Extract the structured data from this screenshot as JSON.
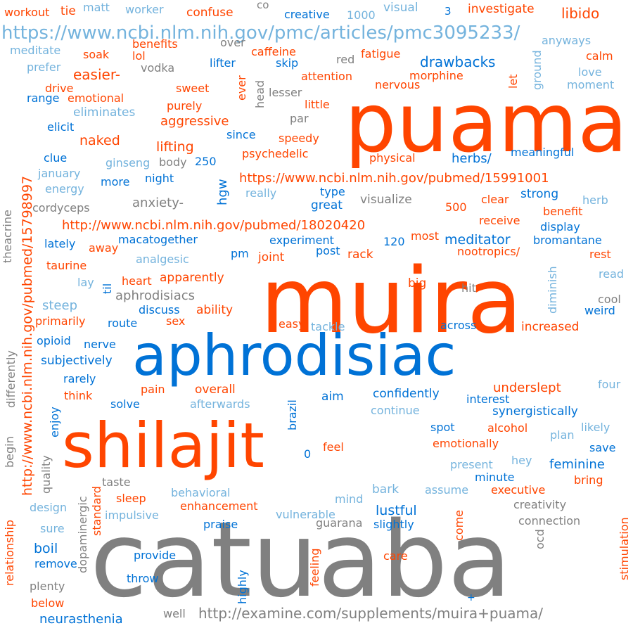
{
  "colors": {
    "orange": "#ff4500",
    "blue": "#0072d6",
    "light_blue": "#74b3dd",
    "gray": "#808080"
  },
  "words": {
    "workout": "workout",
    "tie": "tie",
    "matt": "matt",
    "worker": "worker",
    "confuse": "confuse",
    "co": "co",
    "creative": "creative",
    "n1000": "1000",
    "visual": "visual",
    "n3": "3",
    "investigate": "investigate",
    "libido": "libido",
    "url_pmc": "https://www.ncbi.nlm.nih.gov/pmc/articles/pmc3095233/",
    "meditate": "meditate",
    "benefits": "benefits",
    "over": "over",
    "caffeine": "caffeine",
    "anyways": "anyways",
    "soak": "soak",
    "lol": "lol",
    "red": "red",
    "fatigue": "fatigue",
    "calm": "calm",
    "prefer": "prefer",
    "vodka": "vodka",
    "lifter": "lifter",
    "skip": "skip",
    "drawbacks": "drawbacks",
    "love": "love",
    "easier": "easier-",
    "attention": "attention",
    "morphine": "morphine",
    "moment": "moment",
    "drive": "drive",
    "sweet": "sweet",
    "ever": "ever",
    "lesser": "lesser",
    "nervous": "nervous",
    "head": "head",
    "let": "let",
    "ground": "ground",
    "puama": "puama",
    "range": "range",
    "emotional": "emotional",
    "purely": "purely",
    "little": "little",
    "eliminates": "eliminates",
    "par": "par",
    "aggressive": "aggressive",
    "elicit": "elicit",
    "since": "since",
    "speedy": "speedy",
    "naked": "naked",
    "lifting": "lifting",
    "meaningful": "meaningful",
    "clue": "clue",
    "psychedelic": "psychedelic",
    "physical": "physical",
    "herbs": "herbs/",
    "ginseng": "ginseng",
    "body": "body",
    "n250": "250",
    "january": "january",
    "night": "night",
    "url_pubmed1": "https://www.ncbi.nlm.nih.gov/pubmed/15991001",
    "more": "more",
    "energy": "energy",
    "hgw": "hgw",
    "really": "really",
    "type": "type",
    "strong": "strong",
    "theacrine": "theacrine",
    "cordyceps": "cordyceps",
    "anxiety": "anxiety-",
    "visualize": "visualize",
    "clear": "clear",
    "herb": "herb",
    "great": "great",
    "n500": "500",
    "receive": "receive",
    "benefit": "benefit",
    "url_pubmed2": "http://www.ncbi.nlm.nih.gov/pubmed/18020420",
    "display": "display",
    "macatogether": "macatogether",
    "meditator": "meditator",
    "lately": "lately",
    "experiment": "experiment",
    "most": "most",
    "bromantane": "bromantane",
    "away": "away",
    "n120": "120",
    "post": "post",
    "rack": "rack",
    "nootropics": "nootropics/",
    "rest": "rest",
    "pm": "pm",
    "joint": "joint",
    "analgesic": "analgesic",
    "taurine": "taurine",
    "muira": "muira",
    "read": "read",
    "apparently": "apparently",
    "heart": "heart",
    "lay": "lay",
    "til": "til",
    "diminish": "diminish",
    "big": "big",
    "hit": "hit",
    "aphrodisiacs": "aphrodisiacs",
    "cool": "cool",
    "url_pubmed3": "http://www.ncbi.nlm.nih.gov/pubmed/15798997",
    "steep": "steep",
    "discuss": "discuss",
    "ability": "ability",
    "weird": "weird",
    "primarily": "primarily",
    "route": "route",
    "sex": "sex",
    "easy": "easy",
    "tackle": "tackle",
    "across": "across",
    "increased": "increased",
    "differently": "differently",
    "opioid": "opioid",
    "nerve": "nerve",
    "aphrodisiac": "aphrodisiac",
    "subjectively": "subjectively",
    "rarely": "rarely",
    "underslept": "underslept",
    "four": "four",
    "pain": "pain",
    "overall": "overall",
    "aim": "aim",
    "confidently": "confidently",
    "think": "think",
    "interest": "interest",
    "solve": "solve",
    "afterwards": "afterwards",
    "continue": "continue",
    "synergistically": "synergistically",
    "enjoy": "enjoy",
    "brazil": "brazil",
    "spot": "spot",
    "alcohol": "alcohol",
    "likely": "likely",
    "shilajit": "shilajit",
    "plan": "plan",
    "begin": "begin",
    "feel": "feel",
    "emotionally": "emotionally",
    "save": "save",
    "quality": "quality",
    "n0": "0",
    "present": "present",
    "hey": "hey",
    "feminine": "feminine",
    "minute": "minute",
    "taste": "taste",
    "bring": "bring",
    "bark": "bark",
    "assume": "assume",
    "executive": "executive",
    "behavioral": "behavioral",
    "mind": "mind",
    "sleep": "sleep",
    "lustful": "lustful",
    "creativity": "creativity",
    "design": "design",
    "enhancement": "enhancement",
    "standard": "standard",
    "impulsive": "impulsive",
    "vulnerable": "vulnerable",
    "connection": "connection",
    "relationship": "relationship",
    "guarana": "guarana",
    "slightly": "slightly",
    "come": "come",
    "praise": "praise",
    "sure": "sure",
    "ocd": "ocd",
    "stimulation": "stimulation",
    "boil": "boil",
    "dopaminergic": "dopaminergic",
    "provide": "provide",
    "remove": "remove",
    "care": "care",
    "catuaba": "catuaba",
    "highly": "highly",
    "feeling": "feeling",
    "throw": "throw",
    "plenty": "plenty",
    "plus": "+",
    "below": "below",
    "neurasthenia": "neurasthenia",
    "well": "well",
    "url_examine": "http://examine.com/supplements/muira+puama/"
  }
}
